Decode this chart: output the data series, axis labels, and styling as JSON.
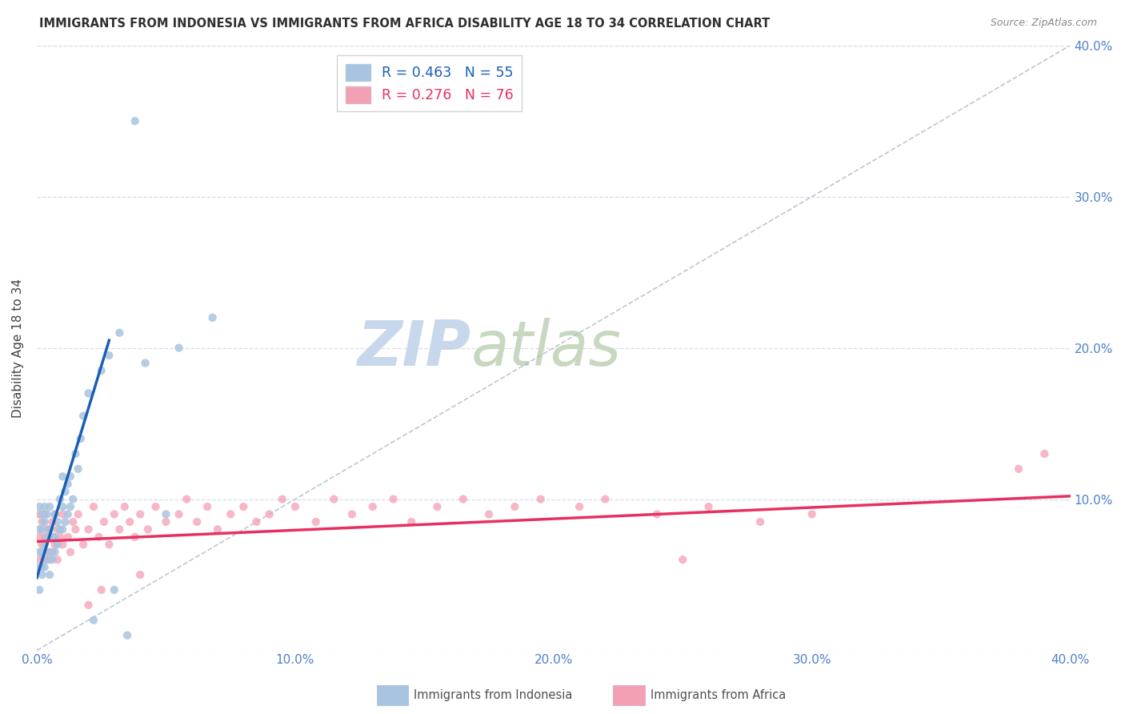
{
  "title": "IMMIGRANTS FROM INDONESIA VS IMMIGRANTS FROM AFRICA DISABILITY AGE 18 TO 34 CORRELATION CHART",
  "source": "Source: ZipAtlas.com",
  "ylabel": "Disability Age 18 to 34",
  "xlim": [
    0.0,
    0.4
  ],
  "ylim": [
    0.0,
    0.4
  ],
  "xticks": [
    0.0,
    0.1,
    0.2,
    0.3,
    0.4
  ],
  "yticks": [
    0.0,
    0.1,
    0.2,
    0.3,
    0.4
  ],
  "xticklabels": [
    "0.0%",
    "10.0%",
    "20.0%",
    "30.0%",
    "40.0%"
  ],
  "right_yticklabels": [
    "10.0%",
    "20.0%",
    "30.0%",
    "40.0%"
  ],
  "right_yticks": [
    0.1,
    0.2,
    0.3,
    0.4
  ],
  "indonesia_R": 0.463,
  "indonesia_N": 55,
  "africa_R": 0.276,
  "africa_N": 76,
  "indonesia_color": "#a8c4e0",
  "africa_color": "#f4a0b4",
  "indonesia_line_color": "#1a5fb4",
  "africa_line_color": "#e83060",
  "diagonal_color": "#b0b8c8",
  "watermark_zip_color": "#c8d8ec",
  "watermark_atlas_color": "#c8d8c0",
  "title_color": "#303030",
  "axis_label_color": "#5080c8",
  "grid_color": "#d8dde8",
  "indonesia_x": [
    0.001,
    0.001,
    0.001,
    0.001,
    0.001,
    0.002,
    0.002,
    0.002,
    0.002,
    0.003,
    0.003,
    0.003,
    0.003,
    0.004,
    0.004,
    0.004,
    0.005,
    0.005,
    0.005,
    0.005,
    0.006,
    0.006,
    0.007,
    0.007,
    0.007,
    0.008,
    0.008,
    0.009,
    0.009,
    0.01,
    0.01,
    0.01,
    0.011,
    0.011,
    0.012,
    0.012,
    0.013,
    0.013,
    0.014,
    0.015,
    0.016,
    0.017,
    0.018,
    0.02,
    0.022,
    0.025,
    0.028,
    0.03,
    0.032,
    0.035,
    0.038,
    0.042,
    0.05,
    0.055,
    0.068
  ],
  "indonesia_y": [
    0.04,
    0.055,
    0.065,
    0.08,
    0.095,
    0.05,
    0.065,
    0.08,
    0.09,
    0.055,
    0.07,
    0.085,
    0.095,
    0.06,
    0.075,
    0.09,
    0.05,
    0.065,
    0.08,
    0.095,
    0.06,
    0.075,
    0.065,
    0.075,
    0.09,
    0.07,
    0.085,
    0.08,
    0.1,
    0.08,
    0.095,
    0.115,
    0.085,
    0.105,
    0.09,
    0.11,
    0.095,
    0.115,
    0.1,
    0.13,
    0.12,
    0.14,
    0.155,
    0.17,
    0.02,
    0.185,
    0.195,
    0.04,
    0.21,
    0.01,
    0.35,
    0.19,
    0.09,
    0.2,
    0.22
  ],
  "africa_x": [
    0.001,
    0.001,
    0.001,
    0.002,
    0.002,
    0.002,
    0.003,
    0.003,
    0.003,
    0.004,
    0.004,
    0.005,
    0.005,
    0.006,
    0.006,
    0.007,
    0.007,
    0.008,
    0.008,
    0.009,
    0.01,
    0.01,
    0.012,
    0.013,
    0.014,
    0.015,
    0.016,
    0.018,
    0.02,
    0.022,
    0.024,
    0.026,
    0.028,
    0.03,
    0.032,
    0.034,
    0.036,
    0.038,
    0.04,
    0.043,
    0.046,
    0.05,
    0.055,
    0.058,
    0.062,
    0.066,
    0.07,
    0.075,
    0.08,
    0.085,
    0.09,
    0.095,
    0.1,
    0.108,
    0.115,
    0.122,
    0.13,
    0.138,
    0.145,
    0.155,
    0.165,
    0.175,
    0.185,
    0.195,
    0.21,
    0.22,
    0.24,
    0.26,
    0.28,
    0.3,
    0.02,
    0.025,
    0.04,
    0.25,
    0.38,
    0.39
  ],
  "africa_y": [
    0.06,
    0.075,
    0.09,
    0.055,
    0.07,
    0.085,
    0.06,
    0.075,
    0.09,
    0.065,
    0.08,
    0.06,
    0.08,
    0.065,
    0.085,
    0.07,
    0.09,
    0.06,
    0.08,
    0.075,
    0.07,
    0.09,
    0.075,
    0.065,
    0.085,
    0.08,
    0.09,
    0.07,
    0.08,
    0.095,
    0.075,
    0.085,
    0.07,
    0.09,
    0.08,
    0.095,
    0.085,
    0.075,
    0.09,
    0.08,
    0.095,
    0.085,
    0.09,
    0.1,
    0.085,
    0.095,
    0.08,
    0.09,
    0.095,
    0.085,
    0.09,
    0.1,
    0.095,
    0.085,
    0.1,
    0.09,
    0.095,
    0.1,
    0.085,
    0.095,
    0.1,
    0.09,
    0.095,
    0.1,
    0.095,
    0.1,
    0.09,
    0.095,
    0.085,
    0.09,
    0.03,
    0.04,
    0.05,
    0.06,
    0.12,
    0.13
  ]
}
